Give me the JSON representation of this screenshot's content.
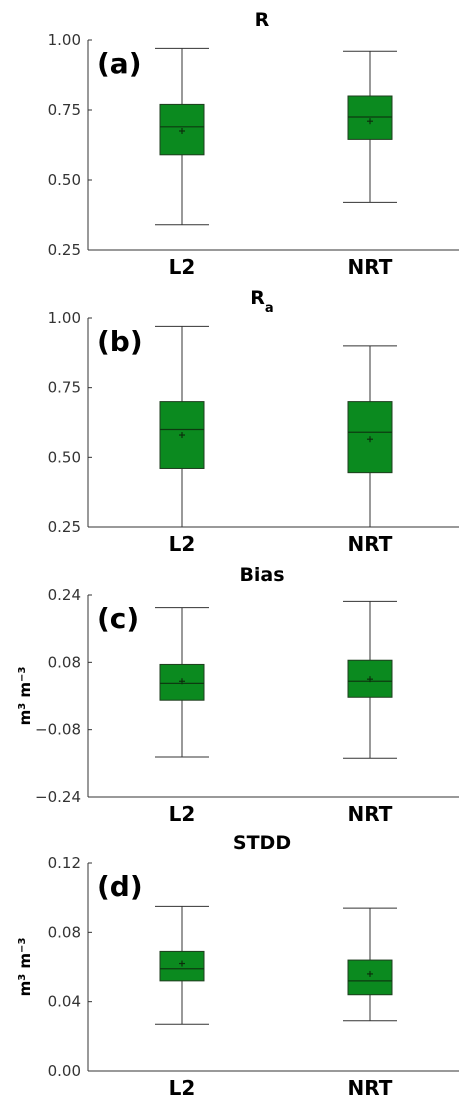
{
  "chart_data": [
    {
      "type": "box",
      "title": "R",
      "title_sub": "",
      "panel_label": "(a)",
      "ylabel": "",
      "ylabel_sup": "",
      "ylim": [
        0.25,
        1.0
      ],
      "yticks": [
        0.25,
        0.5,
        0.75,
        1.0
      ],
      "ytick_labels": [
        "0.25",
        "0.50",
        "0.75",
        "1.00"
      ],
      "categories": [
        "L2",
        "NRT"
      ],
      "boxes": [
        {
          "category": "L2",
          "whisker_low": 0.34,
          "q1": 0.59,
          "median": 0.69,
          "q3": 0.77,
          "whisker_high": 0.97,
          "mean": 0.675
        },
        {
          "category": "NRT",
          "whisker_low": 0.42,
          "q1": 0.645,
          "median": 0.725,
          "q3": 0.8,
          "whisker_high": 0.96,
          "mean": 0.71
        }
      ]
    },
    {
      "type": "box",
      "title": "R",
      "title_sub": "a",
      "panel_label": "(b)",
      "ylabel": "",
      "ylabel_sup": "",
      "ylim": [
        0.25,
        1.0
      ],
      "yticks": [
        0.25,
        0.5,
        0.75,
        1.0
      ],
      "ytick_labels": [
        "0.25",
        "0.50",
        "0.75",
        "1.00"
      ],
      "categories": [
        "L2",
        "NRT"
      ],
      "boxes": [
        {
          "category": "L2",
          "whisker_low": 0.25,
          "q1": 0.46,
          "median": 0.6,
          "q3": 0.7,
          "whisker_high": 0.97,
          "mean": 0.58
        },
        {
          "category": "NRT",
          "whisker_low": 0.25,
          "q1": 0.445,
          "median": 0.59,
          "q3": 0.7,
          "whisker_high": 0.9,
          "mean": 0.565
        }
      ]
    },
    {
      "type": "box",
      "title": "Bias",
      "title_sub": "",
      "panel_label": "(c)",
      "ylabel": "m3 m-3",
      "ylabel_sup": "",
      "ylim": [
        -0.24,
        0.24
      ],
      "yticks": [
        -0.24,
        -0.08,
        0.08,
        0.24
      ],
      "ytick_labels": [
        "−0.24",
        "−0.08",
        "0.08",
        "0.24"
      ],
      "categories": [
        "L2",
        "NRT"
      ],
      "boxes": [
        {
          "category": "L2",
          "whisker_low": -0.145,
          "q1": -0.01,
          "median": 0.03,
          "q3": 0.075,
          "whisker_high": 0.21,
          "mean": 0.035
        },
        {
          "category": "NRT",
          "whisker_low": -0.148,
          "q1": -0.003,
          "median": 0.035,
          "q3": 0.085,
          "whisker_high": 0.225,
          "mean": 0.04
        }
      ]
    },
    {
      "type": "box",
      "title": "STDD",
      "title_sub": "",
      "panel_label": "(d)",
      "ylabel": "m3 m-3",
      "ylabel_sup": "",
      "ylim": [
        0.0,
        0.12
      ],
      "yticks": [
        0.0,
        0.04,
        0.08,
        0.12
      ],
      "ytick_labels": [
        "0.00",
        "0.04",
        "0.08",
        "0.12"
      ],
      "categories": [
        "L2",
        "NRT"
      ],
      "boxes": [
        {
          "category": "L2",
          "whisker_low": 0.027,
          "q1": 0.052,
          "median": 0.059,
          "q3": 0.069,
          "whisker_high": 0.095,
          "mean": 0.062
        },
        {
          "category": "NRT",
          "whisker_low": 0.029,
          "q1": 0.044,
          "median": 0.052,
          "q3": 0.064,
          "whisker_high": 0.094,
          "mean": 0.056
        }
      ]
    }
  ]
}
